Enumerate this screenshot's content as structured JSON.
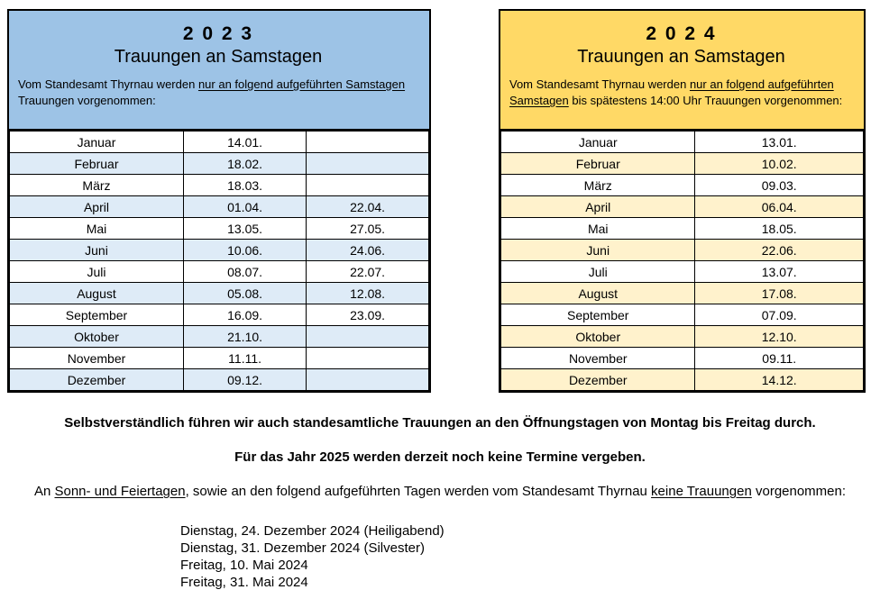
{
  "panels": [
    {
      "year": "2 0 2 3",
      "subtitle": "Trauungen an Samstagen",
      "intro": [
        {
          "text": "Vom Standesamt Thyrnau werden "
        },
        {
          "text": "nur an folgend aufgeführten Samstagen",
          "underline": true
        },
        {
          "text": " Trauungen vorgenommen:"
        }
      ],
      "header_bg": "#9dc3e6",
      "stripe_bg": "#deebf7",
      "rows": [
        {
          "month": "Januar",
          "date1": "14.01.",
          "date2": ""
        },
        {
          "month": "Februar",
          "date1": "18.02.",
          "date2": ""
        },
        {
          "month": "März",
          "date1": "18.03.",
          "date2": ""
        },
        {
          "month": "April",
          "date1": "01.04.",
          "date2": "22.04."
        },
        {
          "month": "Mai",
          "date1": "13.05.",
          "date2": "27.05."
        },
        {
          "month": "Juni",
          "date1": "10.06.",
          "date2": "24.06."
        },
        {
          "month": "Juli",
          "date1": "08.07.",
          "date2": "22.07."
        },
        {
          "month": "August",
          "date1": "05.08.",
          "date2": "12.08."
        },
        {
          "month": "September",
          "date1": "16.09.",
          "date2": "23.09."
        },
        {
          "month": "Oktober",
          "date1": "21.10.",
          "date2": ""
        },
        {
          "month": "November",
          "date1": "11.11.",
          "date2": ""
        },
        {
          "month": "Dezember",
          "date1": "09.12.",
          "date2": ""
        }
      ]
    },
    {
      "year": "2 0 2 4",
      "subtitle": "Trauungen an Samstagen",
      "intro": [
        {
          "text": "Vom Standesamt Thyrnau werden "
        },
        {
          "text": "nur an folgend aufgeführten Samstagen",
          "underline": true
        },
        {
          "text": " bis spätestens 14:00 Uhr Trauungen vorgenommen:"
        }
      ],
      "header_bg": "#ffd966",
      "stripe_bg": "#fff2cc",
      "rows": [
        {
          "month": "Januar",
          "date1": "13.01."
        },
        {
          "month": "Februar",
          "date1": "10.02."
        },
        {
          "month": "März",
          "date1": "09.03."
        },
        {
          "month": "April",
          "date1": "06.04."
        },
        {
          "month": "Mai",
          "date1": "18.05."
        },
        {
          "month": "Juni",
          "date1": "22.06."
        },
        {
          "month": "Juli",
          "date1": "13.07."
        },
        {
          "month": "August",
          "date1": "17.08."
        },
        {
          "month": "September",
          "date1": "07.09."
        },
        {
          "month": "Oktober",
          "date1": "12.10."
        },
        {
          "month": "November",
          "date1": "09.11."
        },
        {
          "month": "Dezember",
          "date1": "14.12."
        }
      ]
    }
  ],
  "notes": {
    "line1": "Selbstverständlich führen wir auch standesamtliche Trauungen an den Öffnungstagen von Montag bis Freitag durch.",
    "line2": "Für das Jahr 2025 werden derzeit noch keine Termine vergeben.",
    "line3": [
      {
        "text": "An "
      },
      {
        "text": "Sonn- und Feiertagen",
        "underline": true
      },
      {
        "text": ", sowie an den folgend aufgeführten Tagen werden vom Standesamt Thyrnau "
      },
      {
        "text": "keine Trauungen",
        "underline": true
      },
      {
        "text": " vorgenommen:"
      }
    ],
    "closed_dates": [
      "Dienstag, 24. Dezember 2024 (Heiligabend)",
      "Dienstag, 31. Dezember 2024 (Silvester)",
      "Freitag, 10. Mai 2024",
      "Freitag, 31. Mai 2024"
    ]
  }
}
